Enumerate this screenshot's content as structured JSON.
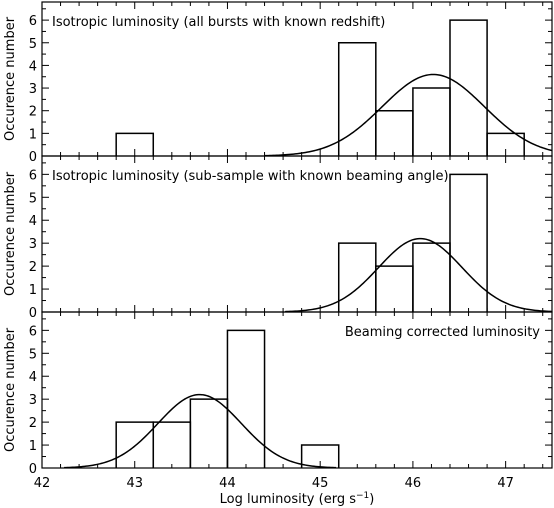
{
  "chart_data": [
    {
      "type": "bar",
      "subtype": "histogram-with-gaussian-fit",
      "title": "Isotropic luminosity (all bursts with known redshift)",
      "title_position": "top-left",
      "ylabel": "Occurence number",
      "xlim": [
        42,
        47.5
      ],
      "ylim": [
        0,
        6.8
      ],
      "yticks": [
        0,
        1,
        2,
        3,
        4,
        5,
        6
      ],
      "bin_width": 0.4,
      "bins": [
        {
          "start": 42.8,
          "count": 1
        },
        {
          "start": 45.2,
          "count": 5
        },
        {
          "start": 45.6,
          "count": 2
        },
        {
          "start": 46.0,
          "count": 3
        },
        {
          "start": 46.4,
          "count": 6
        },
        {
          "start": 46.8,
          "count": 1
        }
      ],
      "fit": {
        "type": "gaussian",
        "mean": 46.22,
        "sigma": 0.55,
        "amplitude": 3.6
      }
    },
    {
      "type": "bar",
      "subtype": "histogram-with-gaussian-fit",
      "title": "Isotropic luminosity (sub-sample with known beaming angle)",
      "title_position": "top-left",
      "ylabel": "Occurence number",
      "xlim": [
        42,
        47.5
      ],
      "ylim": [
        0,
        6.8
      ],
      "yticks": [
        0,
        1,
        2,
        3,
        4,
        5,
        6
      ],
      "bin_width": 0.4,
      "bins": [
        {
          "start": 45.2,
          "count": 3
        },
        {
          "start": 45.6,
          "count": 2
        },
        {
          "start": 46.0,
          "count": 3
        },
        {
          "start": 46.4,
          "count": 6
        }
      ],
      "fit": {
        "type": "gaussian",
        "mean": 46.08,
        "sigma": 0.45,
        "amplitude": 3.2
      }
    },
    {
      "type": "bar",
      "subtype": "histogram-with-gaussian-fit",
      "title": "Beaming corrected luminosity",
      "title_position": "top-right",
      "ylabel": "Occurence number",
      "xlabel": "Log luminosity (erg s",
      "xlabel_superscript": "−1",
      "xlabel_suffix": ")",
      "xlim": [
        42,
        47.5
      ],
      "ylim": [
        0,
        6.8
      ],
      "yticks": [
        0,
        1,
        2,
        3,
        4,
        5,
        6
      ],
      "xticks": [
        42,
        43,
        44,
        45,
        46,
        47
      ],
      "x_tick_labels": [
        "42",
        "43",
        "44",
        "45",
        "46",
        "47"
      ],
      "bin_width": 0.4,
      "bins": [
        {
          "start": 42.8,
          "count": 2
        },
        {
          "start": 43.2,
          "count": 2
        },
        {
          "start": 43.6,
          "count": 3
        },
        {
          "start": 44.0,
          "count": 6
        },
        {
          "start": 44.8,
          "count": 1
        }
      ],
      "fit": {
        "type": "gaussian",
        "mean": 43.7,
        "sigma": 0.45,
        "amplitude": 3.2
      }
    }
  ]
}
